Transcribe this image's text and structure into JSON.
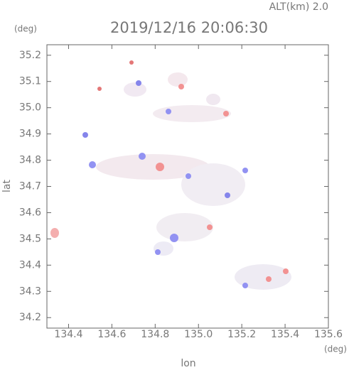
{
  "chart_data": {
    "type": "scatter",
    "title": "2019/12/16 20:06:30",
    "subtitle": "ALT(km) 2.0",
    "x_label": "lon",
    "y_label": "lat",
    "x_unit": "(deg)",
    "y_unit": "(deg)",
    "xlim": [
      134.3,
      135.6
    ],
    "ylim": [
      34.16,
      35.24
    ],
    "xticks": [
      134.4,
      134.6,
      134.8,
      {
        "value": 135,
        "label": "135.0"
      },
      135.2,
      135.4,
      135.6
    ],
    "yticks": [
      34.2,
      34.3,
      34.4,
      34.5,
      34.6,
      34.7,
      34.8,
      34.9,
      {
        "value": 35,
        "label": "35.0"
      },
      35.1,
      35.2
    ],
    "grid": false
  }
}
